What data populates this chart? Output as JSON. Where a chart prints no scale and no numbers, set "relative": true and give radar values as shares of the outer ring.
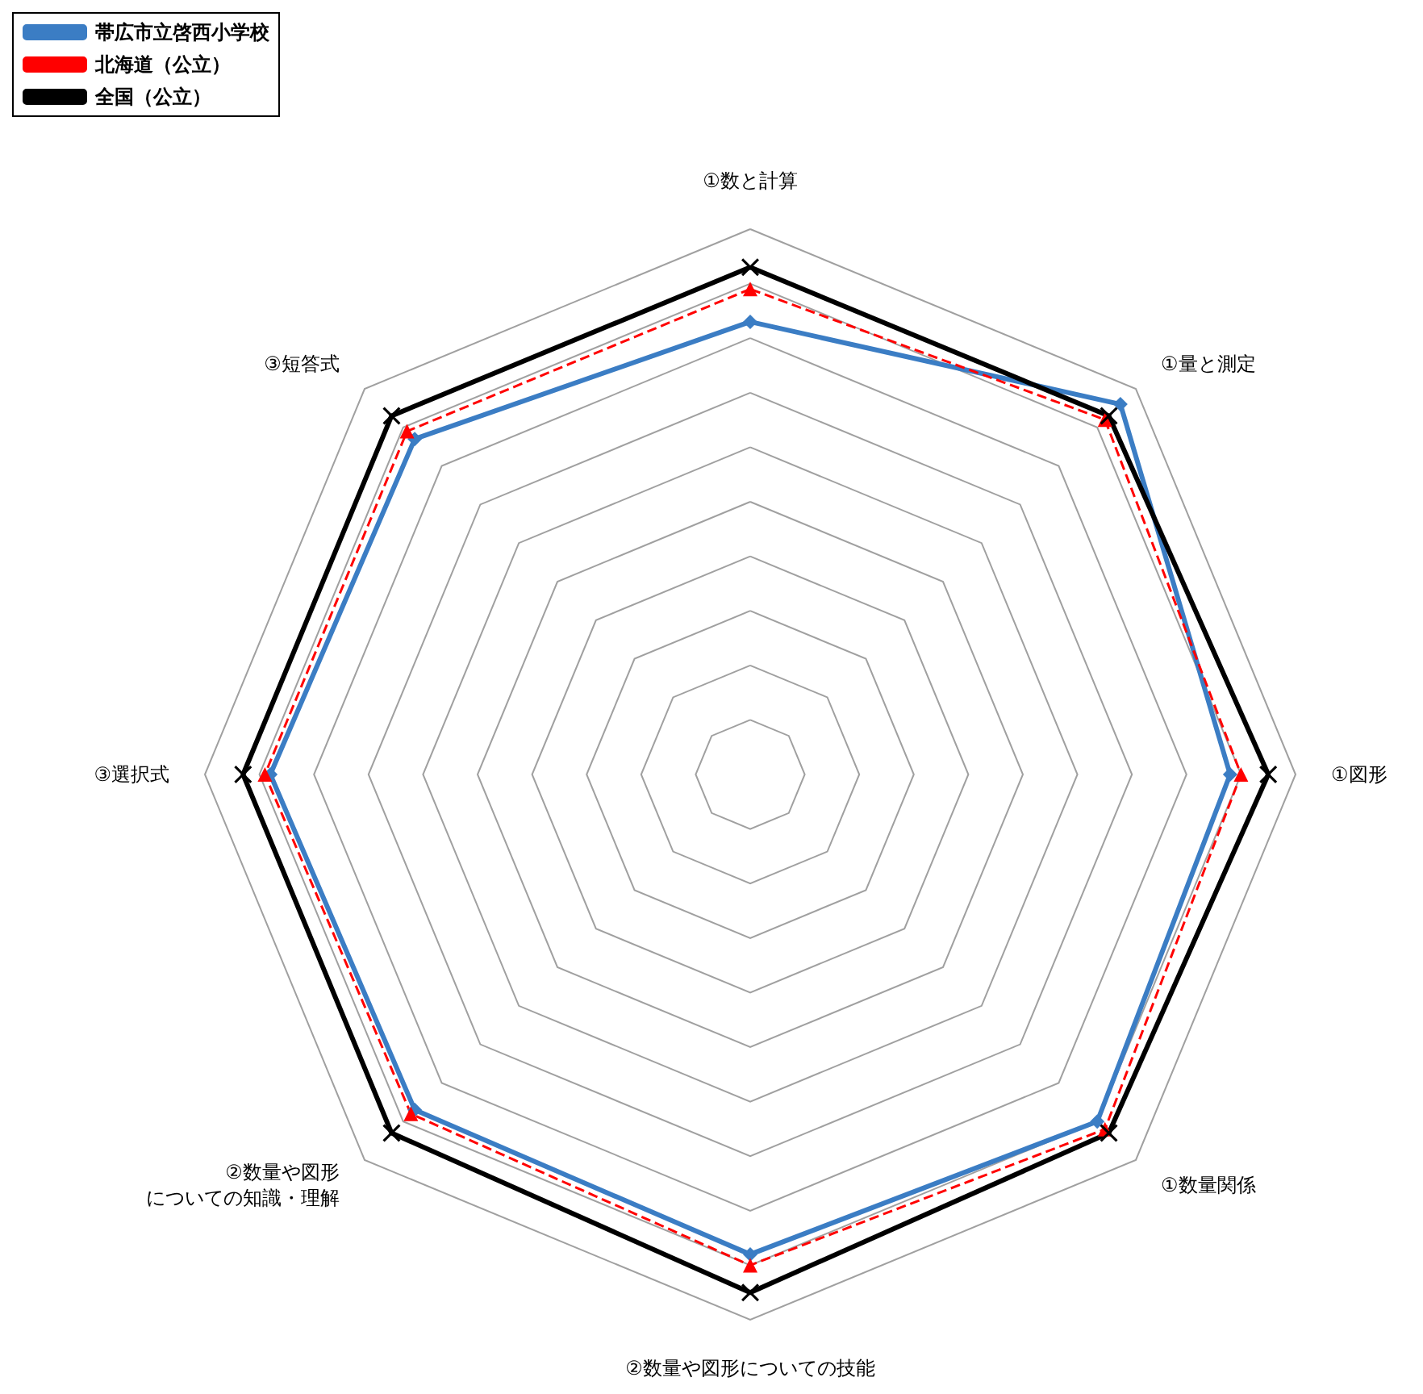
{
  "chart_data": {
    "type": "radar",
    "relative": true,
    "grid": true,
    "legend": "top left",
    "categories": [
      "①数と計算",
      "①量と測定",
      "①図形",
      "①数量関係",
      "②数量や図形についての技能",
      "②数量や図形についての知識・理解",
      "③選択式",
      "③短答式"
    ],
    "series": [
      {
        "name": "帯広市立啓西小学校",
        "color": "#3b7dc4",
        "marker": "diamond",
        "line_style": "solid",
        "values": [
          0.83,
          0.96,
          0.88,
          0.9,
          0.88,
          0.87,
          0.88,
          0.87
        ]
      },
      {
        "name": "北海道（公立）",
        "color": "#ff0000",
        "marker": "triangle",
        "line_style": "dashed",
        "values": [
          0.89,
          0.92,
          0.9,
          0.92,
          0.9,
          0.88,
          0.89,
          0.89
        ]
      },
      {
        "name": "全国（公立）",
        "color": "#000000",
        "marker": "cross",
        "line_style": "solid",
        "values": [
          0.93,
          0.93,
          0.95,
          0.93,
          0.95,
          0.93,
          0.93,
          0.93
        ]
      }
    ]
  }
}
